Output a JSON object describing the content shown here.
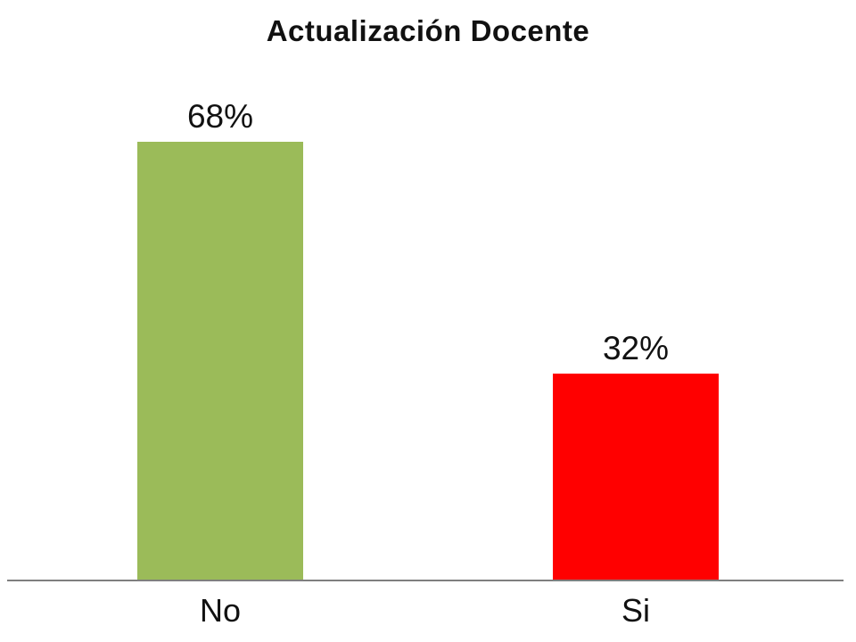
{
  "chart_data": {
    "type": "bar",
    "title": "Actualización Docente",
    "categories": [
      "No",
      "Si"
    ],
    "values": [
      68,
      32
    ],
    "value_labels": [
      "68%",
      "32%"
    ],
    "series": [
      {
        "name": "Actualización Docente",
        "values": [
          68,
          32
        ]
      }
    ],
    "unit": "percent",
    "colors": [
      "#9bbb59",
      "#ff0000"
    ],
    "bar_value_labels_shown": true,
    "y_axis_visible": false,
    "grid": false,
    "legend": "none",
    "axis_line_color": "#7f7f7f",
    "text_color": "#111111",
    "background": "#ffffff"
  }
}
